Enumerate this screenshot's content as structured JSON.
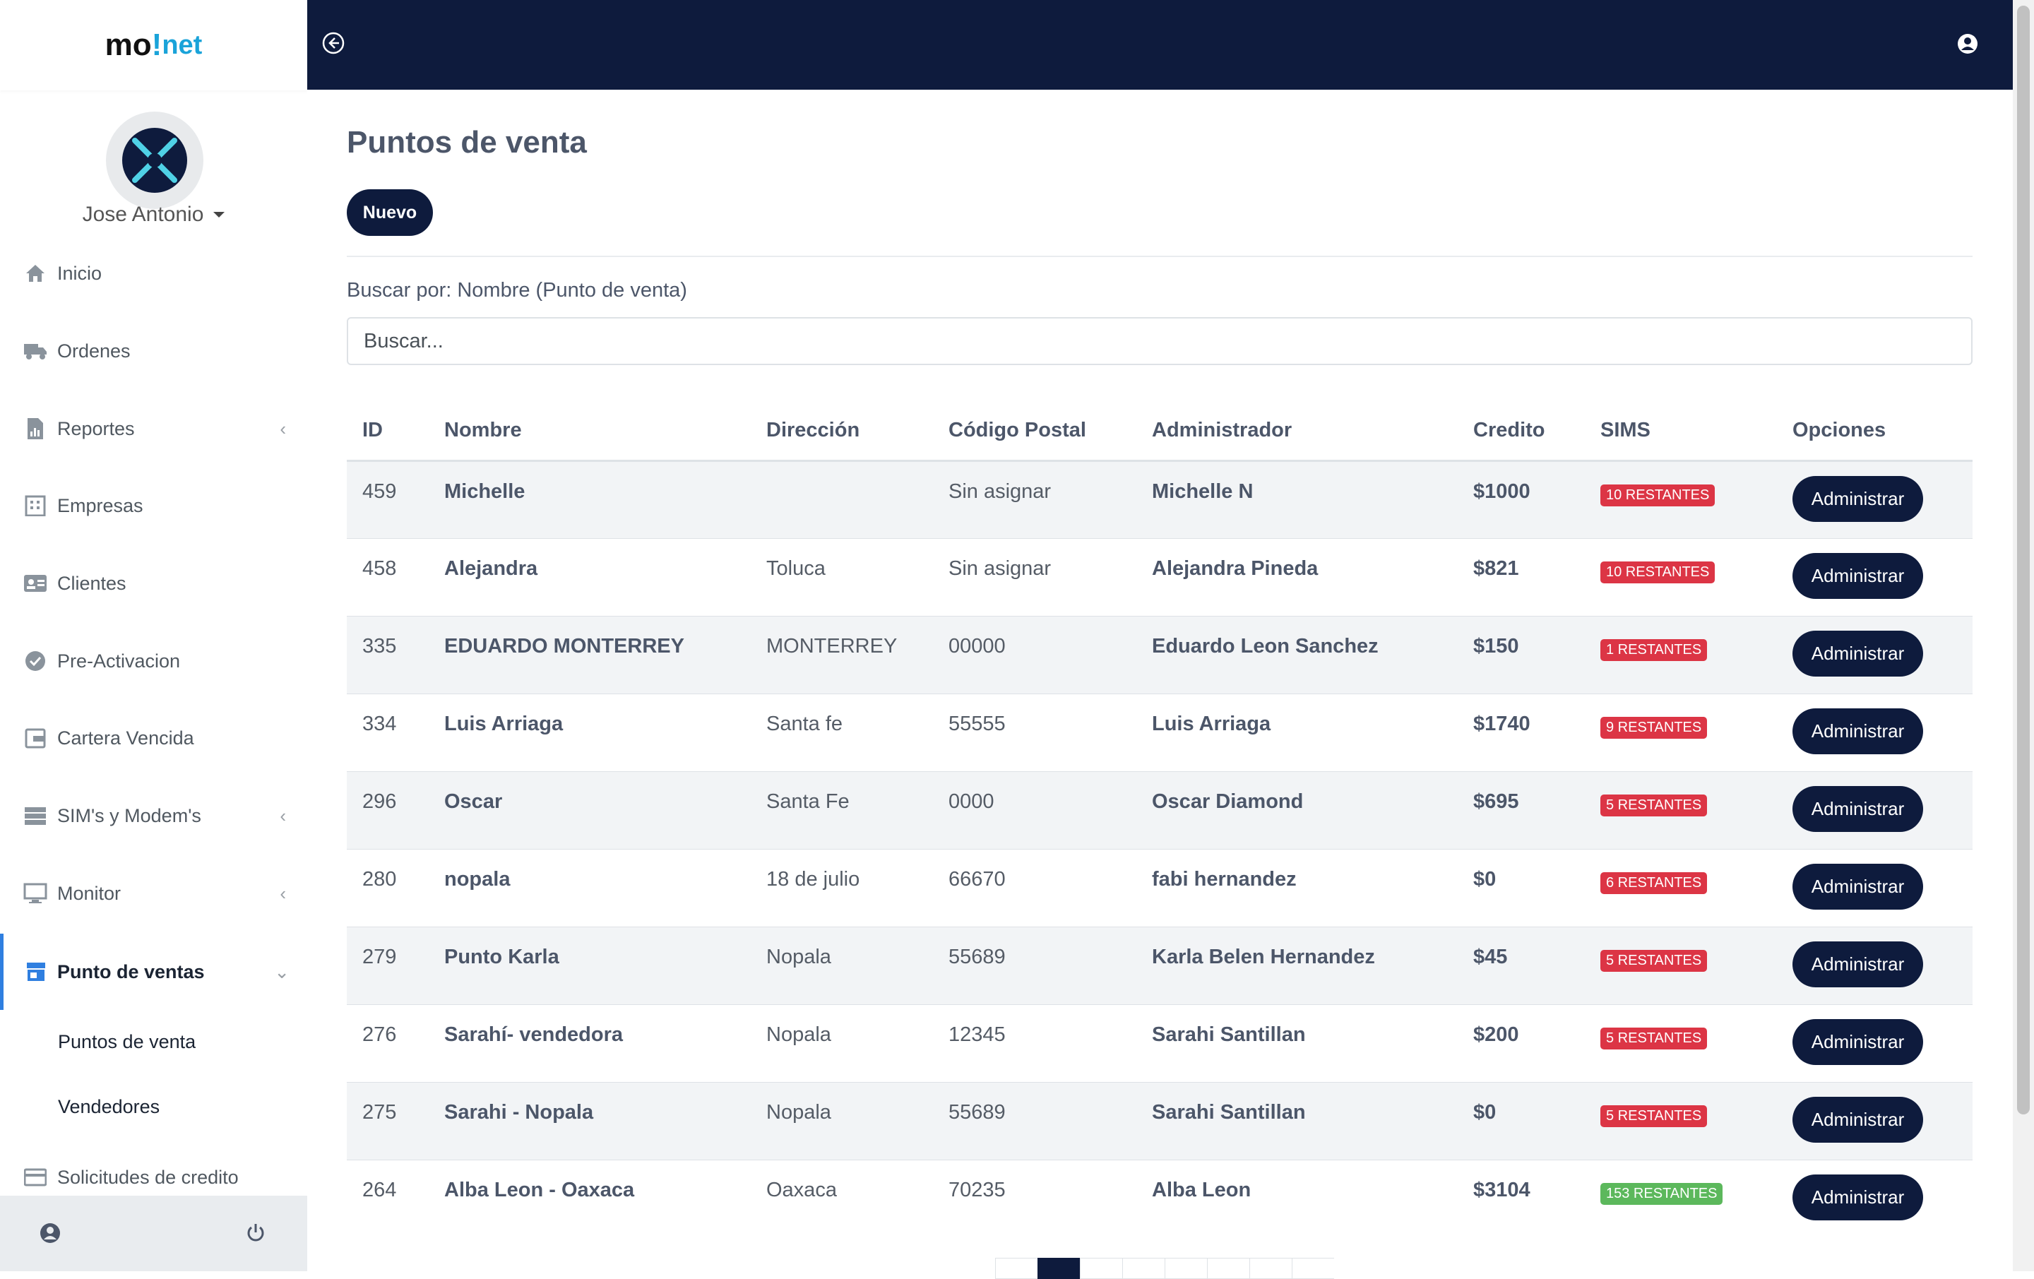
{
  "app": {
    "logo_main": "mo",
    "logo_bang": "!",
    "logo_sub": "net"
  },
  "user": {
    "name": "Jose Antonio"
  },
  "sidebar": {
    "items": [
      {
        "label": "Inicio",
        "icon": "home-icon"
      },
      {
        "label": "Ordenes",
        "icon": "truck-icon"
      },
      {
        "label": "Reportes",
        "icon": "report-icon",
        "chevron": "‹"
      },
      {
        "label": "Empresas",
        "icon": "building-icon"
      },
      {
        "label": "Clientes",
        "icon": "id-card-icon"
      },
      {
        "label": "Pre-Activacion",
        "icon": "check-circle-icon"
      },
      {
        "label": "Cartera Vencida",
        "icon": "wallet-icon"
      },
      {
        "label": "SIM's y Modem's",
        "icon": "server-icon",
        "chevron": "‹"
      },
      {
        "label": "Monitor",
        "icon": "monitor-icon",
        "chevron": "‹"
      },
      {
        "label": "Punto de ventas",
        "icon": "store-icon",
        "chevron": "⌄",
        "active": true
      },
      {
        "label": "Solicitudes de credito",
        "icon": "credit-card-icon"
      }
    ],
    "subitems": [
      "Puntos de venta",
      "Vendedores"
    ]
  },
  "page": {
    "title": "Puntos de venta",
    "new_button": "Nuevo",
    "search_label": "Buscar por: Nombre (Punto de venta)",
    "search_placeholder": "Buscar..."
  },
  "table": {
    "columns": [
      "ID",
      "Nombre",
      "Dirección",
      "Código Postal",
      "Administrador",
      "Credito",
      "SIMS",
      "Opciones"
    ],
    "action_label": "Administrar",
    "rows": [
      {
        "id": "459",
        "nombre": "Michelle",
        "direccion": "",
        "cp": "Sin asignar",
        "admin": "Michelle N",
        "credito": "$1000",
        "sims": "10 RESTANTES",
        "sims_color": "#dc3545"
      },
      {
        "id": "458",
        "nombre": "Alejandra",
        "direccion": "Toluca",
        "cp": "Sin asignar",
        "admin": "Alejandra Pineda",
        "credito": "$821",
        "sims": "10 RESTANTES",
        "sims_color": "#dc3545"
      },
      {
        "id": "335",
        "nombre": "EDUARDO MONTERREY",
        "direccion": "MONTERREY",
        "cp": "00000",
        "admin": "Eduardo Leon Sanchez",
        "credito": "$150",
        "sims": "1 RESTANTES",
        "sims_color": "#dc3545"
      },
      {
        "id": "334",
        "nombre": "Luis Arriaga",
        "direccion": "Santa fe",
        "cp": "55555",
        "admin": "Luis Arriaga",
        "credito": "$1740",
        "sims": "9 RESTANTES",
        "sims_color": "#dc3545"
      },
      {
        "id": "296",
        "nombre": "Oscar",
        "direccion": "Santa Fe",
        "cp": "0000",
        "admin": "Oscar Diamond",
        "credito": "$695",
        "sims": "5 RESTANTES",
        "sims_color": "#dc3545"
      },
      {
        "id": "280",
        "nombre": "nopala",
        "direccion": "18 de julio",
        "cp": "66670",
        "admin": "fabi hernandez",
        "credito": "$0",
        "sims": "6 RESTANTES",
        "sims_color": "#dc3545"
      },
      {
        "id": "279",
        "nombre": "Punto Karla",
        "direccion": "Nopala",
        "cp": "55689",
        "admin": "Karla Belen Hernandez",
        "credito": "$45",
        "sims": "5 RESTANTES",
        "sims_color": "#dc3545"
      },
      {
        "id": "276",
        "nombre": "Sarahí- vendedora",
        "direccion": "Nopala",
        "cp": "12345",
        "admin": "Sarahi Santillan",
        "credito": "$200",
        "sims": "5 RESTANTES",
        "sims_color": "#dc3545"
      },
      {
        "id": "275",
        "nombre": "Sarahi - Nopala",
        "direccion": "Nopala",
        "cp": "55689",
        "admin": "Sarahi Santillan",
        "credito": "$0",
        "sims": "5 RESTANTES",
        "sims_color": "#dc3545"
      },
      {
        "id": "264",
        "nombre": "Alba Leon - Oaxaca",
        "direccion": "Oaxaca",
        "cp": "70235",
        "admin": "Alba Leon",
        "credito": "$3104",
        "sims": "153 RESTANTES",
        "sims_color": "#5cb85c"
      }
    ]
  },
  "pagination": {
    "current_page": 1,
    "visible_slots": 8
  }
}
